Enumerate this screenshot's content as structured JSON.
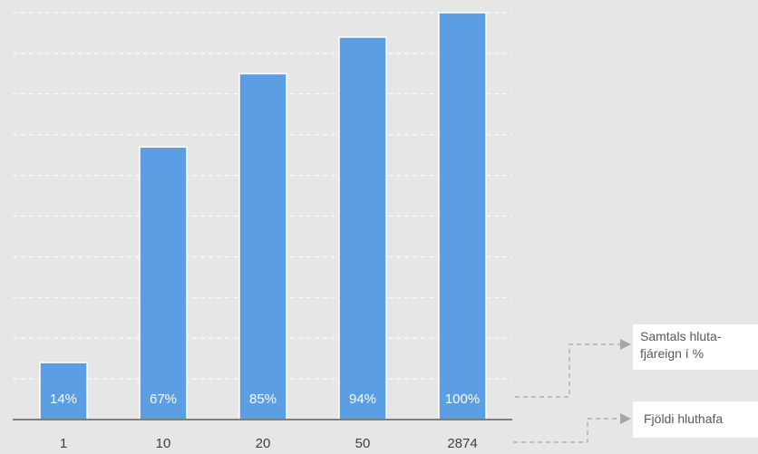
{
  "chart_data": {
    "type": "bar",
    "categories": [
      "1",
      "10",
      "20",
      "50",
      "2874"
    ],
    "values": [
      14,
      67,
      85,
      94,
      100
    ],
    "value_labels": [
      "14%",
      "67%",
      "85%",
      "94%",
      "100%"
    ],
    "title": "",
    "xlabel": "",
    "ylabel": "",
    "ylim": [
      0,
      100
    ],
    "grid": true,
    "bar_color": "#5b9ee4",
    "annotations": {
      "percent_line1": "Samtals hluta-",
      "percent_line2": "fjáreign í %",
      "count_label": "Fjöldi hluthafa"
    }
  }
}
